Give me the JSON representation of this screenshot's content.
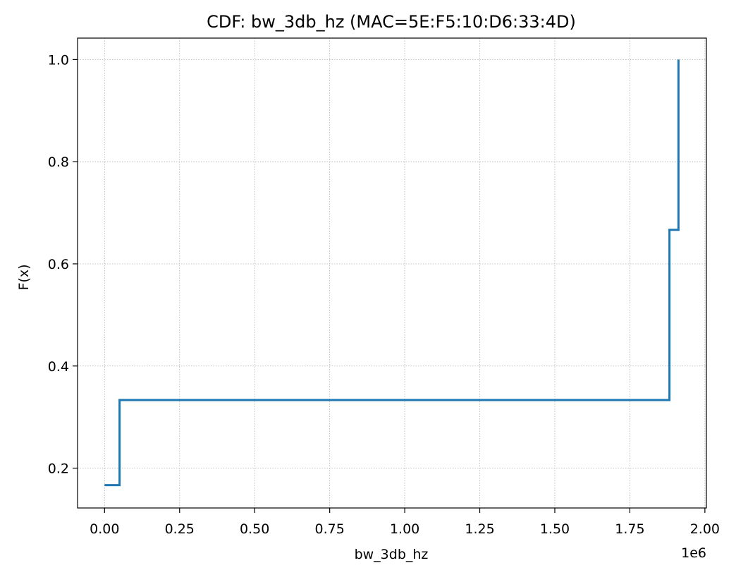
{
  "chart_data": {
    "type": "line",
    "step": true,
    "title": "CDF: bw_3db_hz (MAC=5E:F5:10:D6:33:4D)",
    "xlabel": "bw_3db_hz",
    "ylabel": "F(x)",
    "x_offset_label": "1e6",
    "xlim": [
      -90000,
      2005000
    ],
    "ylim": [
      0.122,
      1.042
    ],
    "xticks": [
      0,
      250000,
      500000,
      750000,
      1000000,
      1250000,
      1500000,
      1750000,
      2000000
    ],
    "xtick_labels": [
      "0.00",
      "0.25",
      "0.50",
      "0.75",
      "1.00",
      "1.25",
      "1.50",
      "1.75",
      "2.00"
    ],
    "yticks": [
      0.2,
      0.4,
      0.6,
      0.8,
      1.0
    ],
    "ytick_labels": [
      "0.2",
      "0.4",
      "0.6",
      "0.8",
      "1.0"
    ],
    "grid": true,
    "line_color": "#1f77b4",
    "series": [
      {
        "x": [
          0,
          50000,
          50000,
          1882000,
          1882000,
          1912000,
          1912000
        ],
        "y": [
          0.1667,
          0.1667,
          0.3333,
          0.3333,
          0.6667,
          0.6667,
          1.0
        ]
      }
    ]
  }
}
